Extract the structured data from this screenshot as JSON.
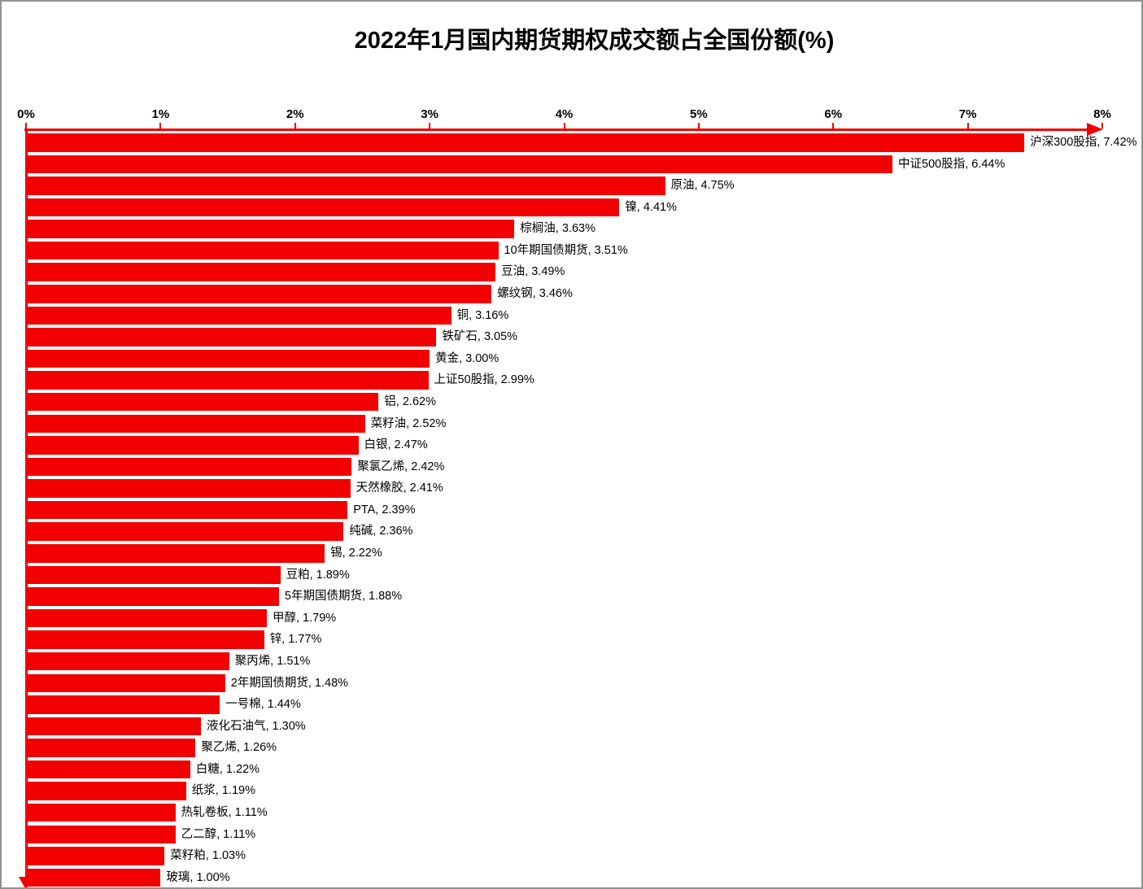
{
  "page": {
    "background": "#FFFFFF",
    "border_color": "#919191"
  },
  "chart_data": {
    "type": "bar",
    "orientation": "horizontal",
    "title": "2022年1月国内期货期权成交额占全国份额(%)",
    "xlabel": "",
    "ylabel": "",
    "xlim": [
      0,
      8
    ],
    "x_tick_labels": [
      "0%",
      "1%",
      "2%",
      "3%",
      "4%",
      "5%",
      "6%",
      "7%",
      "8%"
    ],
    "grid": false,
    "legend": false,
    "bar_color": "#F20000",
    "axis_color": "#F20000",
    "text_color": "#000000",
    "categories": [
      "沪深300股指",
      "中证500股指",
      "原油",
      "镍",
      "棕榈油",
      "10年期国债期货",
      "豆油",
      "螺纹钢",
      "铜",
      "铁矿石",
      "黄金",
      "上证50股指",
      "铝",
      "菜籽油",
      "白银",
      "聚氯乙烯",
      "天然橡胶",
      "PTA",
      "纯碱",
      "锡",
      "豆粕",
      "5年期国债期货",
      "甲醇",
      "锌",
      "聚丙烯",
      "2年期国债期货",
      "一号棉",
      "液化石油气",
      "聚乙烯",
      "白糖",
      "纸浆",
      "热轧卷板",
      "乙二醇",
      "菜籽粕",
      "玻璃"
    ],
    "values": [
      7.42,
      6.44,
      4.75,
      4.41,
      3.63,
      3.51,
      3.49,
      3.46,
      3.16,
      3.05,
      3.0,
      2.99,
      2.62,
      2.52,
      2.47,
      2.42,
      2.41,
      2.39,
      2.36,
      2.22,
      1.89,
      1.88,
      1.79,
      1.77,
      1.51,
      1.48,
      1.44,
      1.3,
      1.26,
      1.22,
      1.19,
      1.11,
      1.11,
      1.03,
      1.0
    ],
    "data_labels": [
      "沪深300股指, 7.42%",
      "中证500股指, 6.44%",
      "原油, 4.75%",
      "镍, 4.41%",
      "棕榈油, 3.63%",
      "10年期国债期货, 3.51%",
      "豆油, 3.49%",
      "螺纹钢, 3.46%",
      "铜, 3.16%",
      "铁矿石, 3.05%",
      "黄金, 3.00%",
      "上证50股指, 2.99%",
      "铝, 2.62%",
      "菜籽油, 2.52%",
      "白银, 2.47%",
      "聚氯乙烯, 2.42%",
      "天然橡胶, 2.41%",
      "PTA, 2.39%",
      "纯碱, 2.36%",
      "锡, 2.22%",
      "豆粕, 1.89%",
      "5年期国债期货, 1.88%",
      "甲醇, 1.79%",
      "锌, 1.77%",
      "聚丙烯, 1.51%",
      "2年期国债期货, 1.48%",
      "一号棉, 1.44%",
      "液化石油气, 1.30%",
      "聚乙烯, 1.26%",
      "白糖, 1.22%",
      "纸浆, 1.19%",
      "热轧卷板, 1.11%",
      "乙二醇, 1.11%",
      "菜籽粕, 1.03%",
      "玻璃, 1.00%"
    ]
  }
}
